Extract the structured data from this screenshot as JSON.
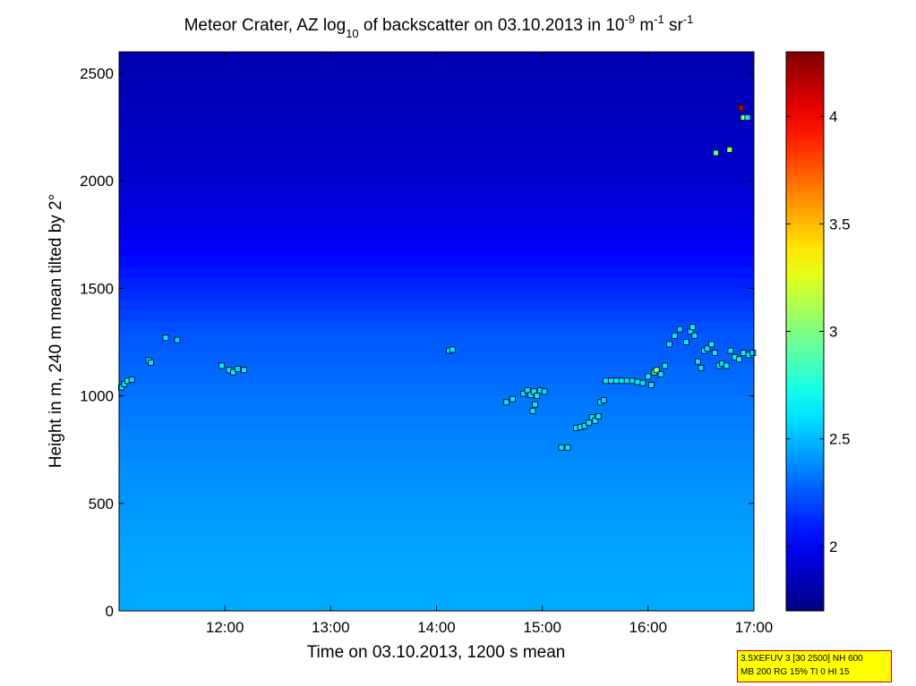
{
  "chart_data": {
    "type": "heatmap",
    "title": {
      "prefix": "Meteor Crater, AZ log",
      "sub": "10",
      "middle": " of backscatter on 03.10.2013 in 10",
      "sup1": "-9",
      "unit1": " m",
      "sup2": "-1",
      "unit2": " sr",
      "sup3": "-1"
    },
    "xlabel": "Time on 03.10.2013, 1200 s mean",
    "ylabel": "Height in m, 240 m mean tilted by 2°",
    "xlim": [
      11.0,
      17.0
    ],
    "ylim": [
      0,
      2600
    ],
    "x_ticks": [
      {
        "value": 12,
        "label": "12:00"
      },
      {
        "value": 13,
        "label": "13:00"
      },
      {
        "value": 14,
        "label": "14:00"
      },
      {
        "value": 15,
        "label": "15:00"
      },
      {
        "value": 16,
        "label": "16:00"
      },
      {
        "value": 17,
        "label": "17:00"
      }
    ],
    "y_ticks": [
      {
        "value": 0,
        "label": "0"
      },
      {
        "value": 500,
        "label": "500"
      },
      {
        "value": 1000,
        "label": "1000"
      },
      {
        "value": 1500,
        "label": "1500"
      },
      {
        "value": 2000,
        "label": "2000"
      },
      {
        "value": 2500,
        "label": "2500"
      }
    ],
    "colorbar": {
      "range": [
        1.7,
        4.3
      ],
      "ticks": [
        {
          "value": 2,
          "label": "2"
        },
        {
          "value": 2.5,
          "label": "2.5"
        },
        {
          "value": 3,
          "label": "3"
        },
        {
          "value": 3.5,
          "label": "3.5"
        },
        {
          "value": 4,
          "label": "4"
        }
      ],
      "colormap": "jet"
    },
    "field_profile": [
      {
        "height": 0,
        "value": 2.46
      },
      {
        "height": 300,
        "value": 2.44
      },
      {
        "height": 700,
        "value": 2.38
      },
      {
        "height": 1000,
        "value": 2.32
      },
      {
        "height": 1300,
        "value": 2.24
      },
      {
        "height": 1500,
        "value": 2.12
      },
      {
        "height": 1700,
        "value": 2.0
      },
      {
        "height": 2000,
        "value": 1.9
      },
      {
        "height": 2600,
        "value": 1.82
      }
    ],
    "markers": [
      {
        "x": 11.02,
        "y": 1040,
        "v": 2.62
      },
      {
        "x": 11.05,
        "y": 1055,
        "v": 2.6
      },
      {
        "x": 11.08,
        "y": 1070,
        "v": 2.64
      },
      {
        "x": 11.12,
        "y": 1075,
        "v": 2.58
      },
      {
        "x": 11.28,
        "y": 1165,
        "v": 2.62
      },
      {
        "x": 11.3,
        "y": 1155,
        "v": 2.6
      },
      {
        "x": 11.44,
        "y": 1270,
        "v": 2.62
      },
      {
        "x": 11.55,
        "y": 1260,
        "v": 2.58
      },
      {
        "x": 11.97,
        "y": 1140,
        "v": 2.62
      },
      {
        "x": 12.04,
        "y": 1120,
        "v": 2.6
      },
      {
        "x": 12.08,
        "y": 1110,
        "v": 2.64
      },
      {
        "x": 12.12,
        "y": 1125,
        "v": 2.58
      },
      {
        "x": 12.18,
        "y": 1120,
        "v": 2.62
      },
      {
        "x": 14.12,
        "y": 1210,
        "v": 2.6
      },
      {
        "x": 14.15,
        "y": 1215,
        "v": 2.62
      },
      {
        "x": 14.66,
        "y": 970,
        "v": 2.6
      },
      {
        "x": 14.72,
        "y": 985,
        "v": 2.62
      },
      {
        "x": 14.82,
        "y": 1010,
        "v": 2.58
      },
      {
        "x": 14.86,
        "y": 1025,
        "v": 2.62
      },
      {
        "x": 14.89,
        "y": 1005,
        "v": 2.6
      },
      {
        "x": 14.92,
        "y": 1020,
        "v": 2.64
      },
      {
        "x": 14.95,
        "y": 1000,
        "v": 2.62
      },
      {
        "x": 14.98,
        "y": 1025,
        "v": 2.6
      },
      {
        "x": 15.02,
        "y": 1020,
        "v": 2.58
      },
      {
        "x": 14.93,
        "y": 960,
        "v": 2.62
      },
      {
        "x": 14.91,
        "y": 930,
        "v": 2.6
      },
      {
        "x": 15.18,
        "y": 760,
        "v": 2.6
      },
      {
        "x": 15.24,
        "y": 760,
        "v": 2.62
      },
      {
        "x": 15.32,
        "y": 850,
        "v": 2.6
      },
      {
        "x": 15.36,
        "y": 855,
        "v": 2.62
      },
      {
        "x": 15.4,
        "y": 860,
        "v": 2.58
      },
      {
        "x": 15.44,
        "y": 875,
        "v": 2.62
      },
      {
        "x": 15.47,
        "y": 900,
        "v": 2.6
      },
      {
        "x": 15.5,
        "y": 885,
        "v": 2.64
      },
      {
        "x": 15.53,
        "y": 905,
        "v": 2.62
      },
      {
        "x": 15.55,
        "y": 970,
        "v": 2.6
      },
      {
        "x": 15.58,
        "y": 980,
        "v": 2.58
      },
      {
        "x": 15.6,
        "y": 1070,
        "v": 2.62
      },
      {
        "x": 15.65,
        "y": 1070,
        "v": 2.6
      },
      {
        "x": 15.7,
        "y": 1070,
        "v": 2.64
      },
      {
        "x": 15.75,
        "y": 1070,
        "v": 2.62
      },
      {
        "x": 15.8,
        "y": 1070,
        "v": 2.6
      },
      {
        "x": 15.85,
        "y": 1070,
        "v": 2.58
      },
      {
        "x": 15.9,
        "y": 1065,
        "v": 2.62
      },
      {
        "x": 15.95,
        "y": 1060,
        "v": 2.6
      },
      {
        "x": 16.0,
        "y": 1090,
        "v": 2.64
      },
      {
        "x": 16.03,
        "y": 1050,
        "v": 2.62
      },
      {
        "x": 16.06,
        "y": 1110,
        "v": 2.9
      },
      {
        "x": 16.08,
        "y": 1120,
        "v": 3.0
      },
      {
        "x": 16.12,
        "y": 1100,
        "v": 2.6
      },
      {
        "x": 16.16,
        "y": 1140,
        "v": 2.62
      },
      {
        "x": 16.2,
        "y": 1240,
        "v": 2.6
      },
      {
        "x": 16.25,
        "y": 1280,
        "v": 2.62
      },
      {
        "x": 16.3,
        "y": 1310,
        "v": 2.58
      },
      {
        "x": 16.36,
        "y": 1250,
        "v": 2.62
      },
      {
        "x": 16.4,
        "y": 1300,
        "v": 2.6
      },
      {
        "x": 16.42,
        "y": 1320,
        "v": 2.64
      },
      {
        "x": 16.44,
        "y": 1280,
        "v": 2.62
      },
      {
        "x": 16.47,
        "y": 1160,
        "v": 2.6
      },
      {
        "x": 16.5,
        "y": 1130,
        "v": 2.58
      },
      {
        "x": 16.53,
        "y": 1210,
        "v": 2.62
      },
      {
        "x": 16.56,
        "y": 1220,
        "v": 2.6
      },
      {
        "x": 16.6,
        "y": 1240,
        "v": 2.64
      },
      {
        "x": 16.63,
        "y": 1200,
        "v": 2.62
      },
      {
        "x": 16.67,
        "y": 1140,
        "v": 2.6
      },
      {
        "x": 16.7,
        "y": 1150,
        "v": 2.58
      },
      {
        "x": 16.74,
        "y": 1140,
        "v": 2.62
      },
      {
        "x": 16.78,
        "y": 1210,
        "v": 2.6
      },
      {
        "x": 16.82,
        "y": 1180,
        "v": 2.62
      },
      {
        "x": 16.86,
        "y": 1170,
        "v": 2.64
      },
      {
        "x": 16.9,
        "y": 1200,
        "v": 2.62
      },
      {
        "x": 16.95,
        "y": 1190,
        "v": 2.6
      },
      {
        "x": 16.99,
        "y": 1200,
        "v": 2.62
      },
      {
        "x": 16.64,
        "y": 2130,
        "v": 2.9
      },
      {
        "x": 16.77,
        "y": 2145,
        "v": 3.0
      },
      {
        "x": 16.88,
        "y": 2340,
        "v": 4.15
      },
      {
        "x": 16.9,
        "y": 2295,
        "v": 3.0
      },
      {
        "x": 16.94,
        "y": 2295,
        "v": 2.62
      }
    ]
  },
  "info_box": {
    "line1": "3.5XEFUV 3 [30 2500] NH 600",
    "line2": "MB 200 RG 15% TI 0 HI 15"
  }
}
